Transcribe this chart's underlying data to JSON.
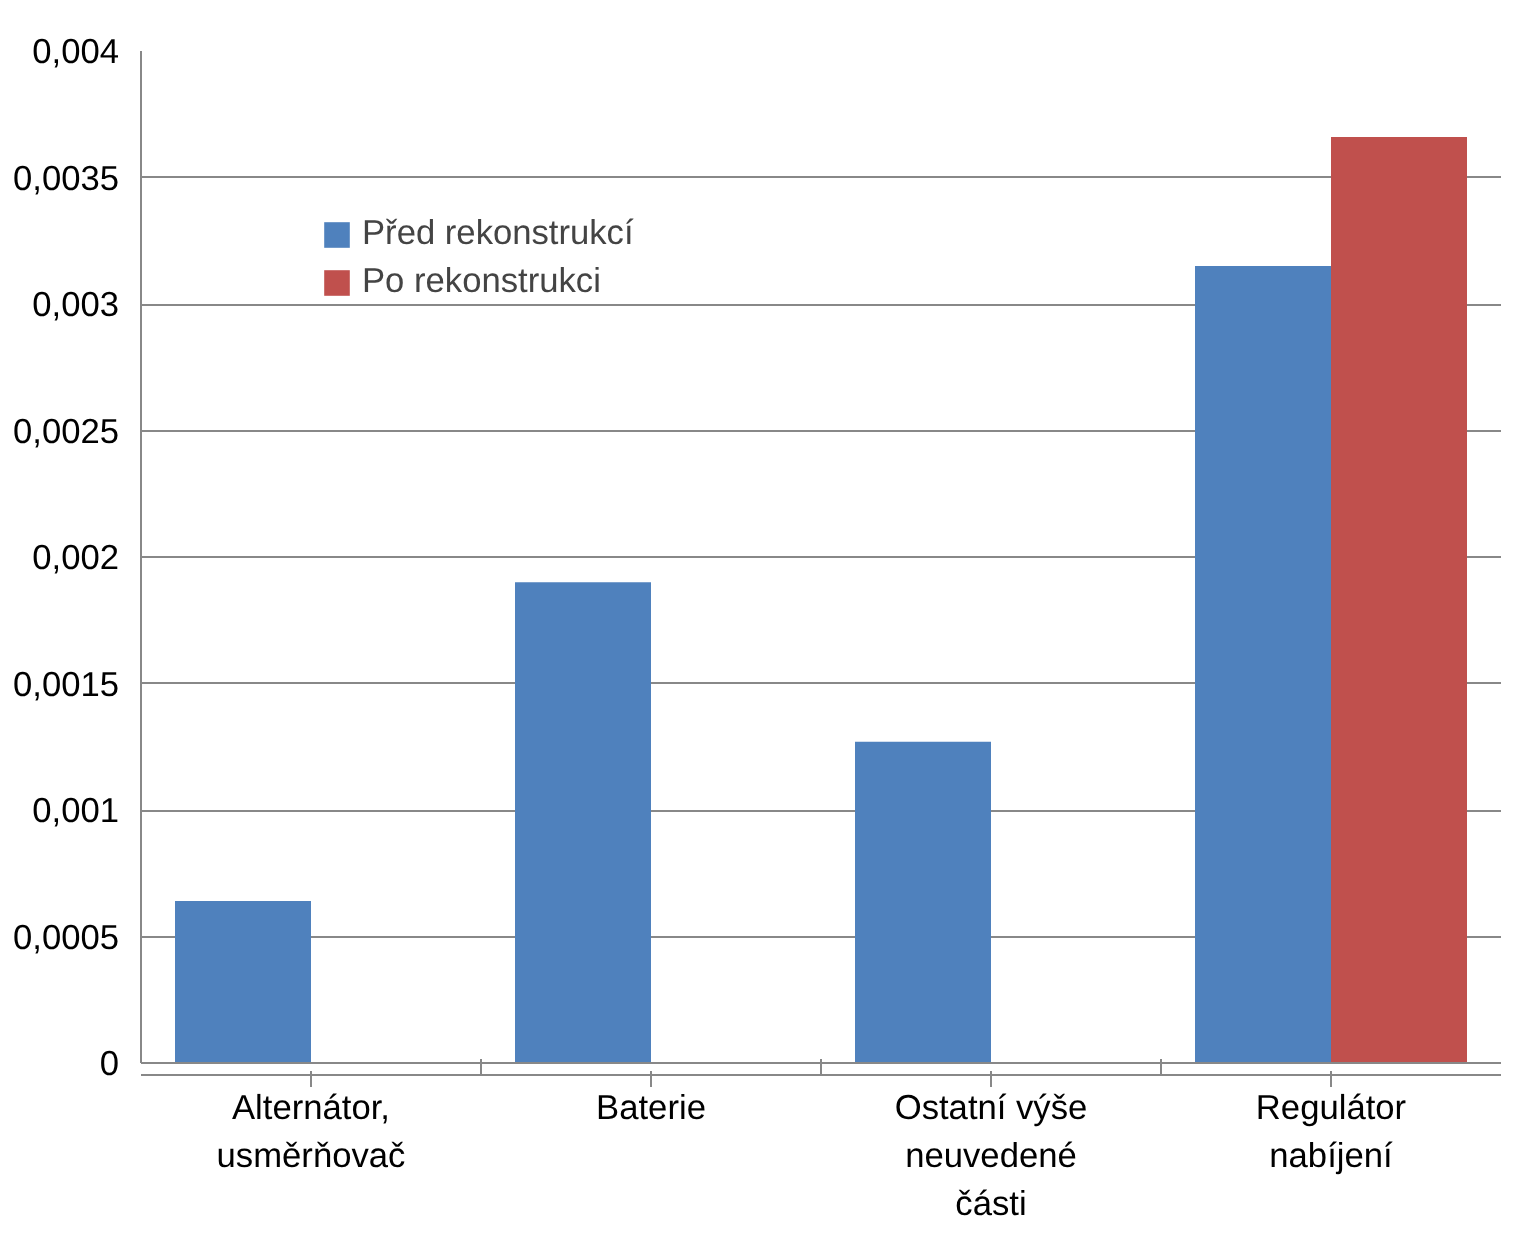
{
  "chart_data": {
    "type": "bar",
    "categories": [
      "Alternátor,\nusměrňovač",
      "Baterie",
      "Ostatní výše\nneuvedené\nčásti",
      "Regulátor\nnabíjení"
    ],
    "series": [
      {
        "name": "Před rekonstrukcí",
        "color": "#4f81bd",
        "values": [
          0.00064,
          0.0019,
          0.00127,
          0.00315
        ]
      },
      {
        "name": "Po rekonstrukci",
        "color": "#c0504d",
        "values": [
          null,
          null,
          null,
          0.00366
        ]
      }
    ],
    "ylim": [
      0,
      0.004
    ],
    "yticks": [
      0,
      {
        "value": 0.0005,
        "label": "0,0005"
      },
      {
        "value": 0.001,
        "label": "0,001"
      },
      {
        "value": 0.0015,
        "label": "0,0015"
      },
      {
        "value": 0.002,
        "label": "0,002"
      },
      {
        "value": 0.0025,
        "label": "0,0025"
      },
      {
        "value": 0.003,
        "label": "0,003"
      },
      {
        "value": 0.0035,
        "label": "0,0035"
      },
      {
        "value": 0.004,
        "label": "0,004"
      }
    ],
    "grid": "y",
    "legend": "top left"
  }
}
